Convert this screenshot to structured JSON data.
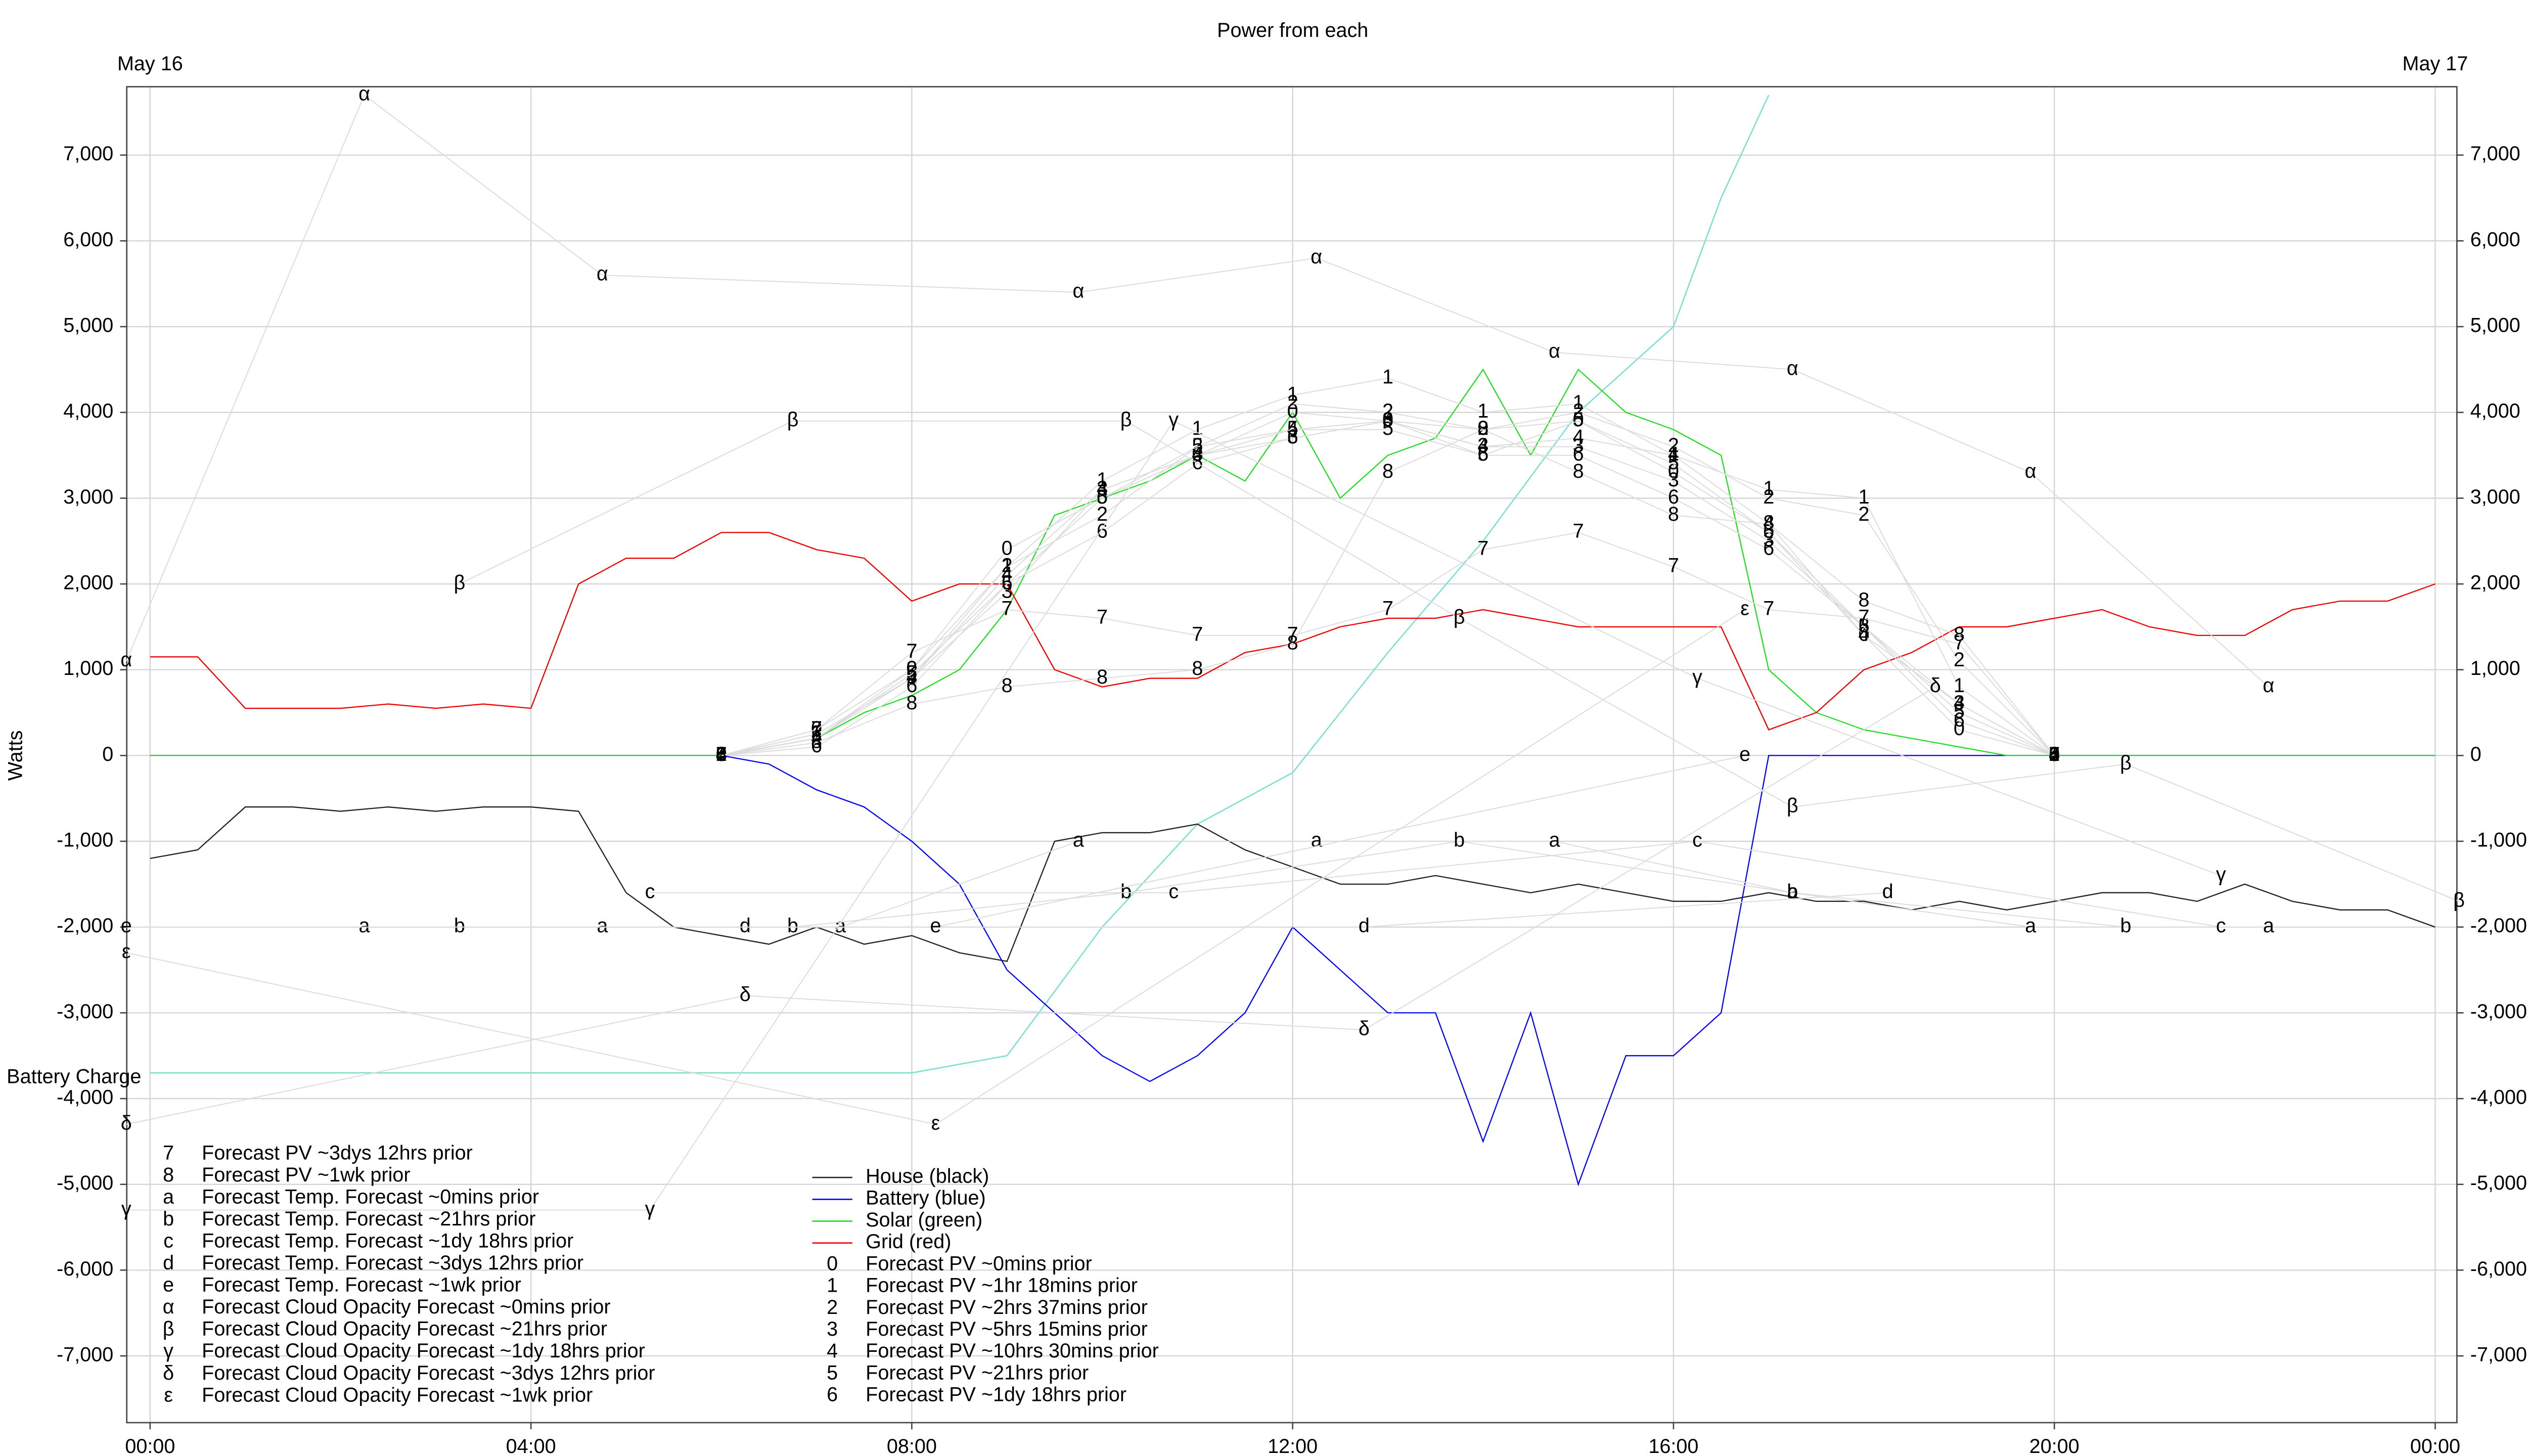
{
  "chart_data": {
    "type": "line",
    "title": "Power from each",
    "y_label": "Watts",
    "date_labels": [
      {
        "value": 0,
        "label": "May 16"
      },
      {
        "value": 24,
        "label": "May 17"
      }
    ],
    "xlim": [
      -0.245,
      24.228
    ],
    "ylim": [
      -7778,
      7797
    ],
    "xticks": [
      {
        "value": 0,
        "label": "00:00"
      },
      {
        "value": 4,
        "label": "04:00"
      },
      {
        "value": 8,
        "label": "08:00"
      },
      {
        "value": 12,
        "label": "12:00"
      },
      {
        "value": 16,
        "label": "16:00"
      },
      {
        "value": 20,
        "label": "20:00"
      },
      {
        "value": 24,
        "label": "00:00"
      }
    ],
    "yticks": [
      {
        "value": -7000,
        "label": "-7,000"
      },
      {
        "value": -6000,
        "label": "-6,000"
      },
      {
        "value": -5000,
        "label": "-5,000"
      },
      {
        "value": -4000,
        "label": "-4,000"
      },
      {
        "value": -3000,
        "label": "-3,000"
      },
      {
        "value": -2000,
        "label": "-2,000"
      },
      {
        "value": -1000,
        "label": "-1,000"
      },
      0,
      {
        "value": 1000,
        "label": "1,000"
      },
      {
        "value": 2000,
        "label": "2,000"
      },
      {
        "value": 3000,
        "label": "3,000"
      },
      {
        "value": 4000,
        "label": "4,000"
      },
      {
        "value": 5000,
        "label": "5,000"
      },
      {
        "value": 6000,
        "label": "6,000"
      },
      {
        "value": 7000,
        "label": "7,000"
      }
    ],
    "grid": true,
    "x": [
      0,
      0.5,
      1,
      1.5,
      2,
      2.5,
      3,
      3.5,
      4,
      4.5,
      5,
      5.5,
      6,
      6.5,
      7,
      7.5,
      8,
      8.5,
      9,
      9.5,
      10,
      10.5,
      11,
      11.5,
      12,
      12.5,
      13,
      13.5,
      14,
      14.5,
      15,
      15.5,
      16,
      16.5,
      17,
      17.5,
      18,
      18.5,
      19,
      19.5,
      20,
      20.5,
      21,
      21.5,
      22,
      22.5,
      23,
      23.5,
      24
    ],
    "battery_charge": {
      "name": "Battery Charge",
      "color": "#7fe0d0",
      "x": [
        0,
        8,
        9,
        10,
        11,
        12,
        13,
        14,
        15,
        16,
        16.5,
        17
      ],
      "values": [
        -3700,
        -3700,
        -3500,
        -2000,
        -800,
        -200,
        1200,
        2500,
        4000,
        5000,
        6500,
        7700
      ]
    },
    "series": [
      {
        "name": "House (black)",
        "color": "#222222",
        "values": [
          -1200,
          -1100,
          -600,
          -600,
          -650,
          -600,
          -650,
          -600,
          -600,
          -650,
          -1600,
          -2000,
          -2100,
          -2200,
          -2000,
          -2200,
          -2100,
          -2300,
          -2400,
          -1000,
          -900,
          -900,
          -800,
          -1100,
          -1300,
          -1500,
          -1500,
          -1400,
          -1500,
          -1600,
          -1500,
          -1600,
          -1700,
          -1700,
          -1600,
          -1700,
          -1700,
          -1800,
          -1700,
          -1800,
          -1700,
          -1600,
          -1600,
          -1700,
          -1500,
          -1700,
          -1800,
          -1800,
          -2000
        ]
      },
      {
        "name": "Battery (blue)",
        "color": "#0000ff",
        "values": [
          0,
          0,
          0,
          0,
          0,
          0,
          0,
          0,
          0,
          0,
          0,
          0,
          0,
          -100,
          -400,
          -600,
          -1000,
          -1500,
          -2500,
          -3000,
          -3500,
          -3800,
          -3500,
          -3000,
          -2000,
          -2500,
          -3000,
          -3000,
          -4500,
          -3000,
          -5000,
          -3500,
          -3500,
          -3000,
          0,
          0,
          0,
          0,
          0,
          0,
          0,
          0,
          0,
          0,
          0,
          0,
          0,
          0,
          0
        ]
      },
      {
        "name": "Solar (green)",
        "color": "#22dd22",
        "values": [
          0,
          0,
          0,
          0,
          0,
          0,
          0,
          0,
          0,
          0,
          0,
          0,
          0,
          100,
          200,
          500,
          700,
          1000,
          1700,
          2800,
          3000,
          3200,
          3500,
          3200,
          4000,
          3000,
          3500,
          3700,
          4500,
          3500,
          4500,
          4000,
          3800,
          3500,
          1000,
          500,
          300,
          200,
          100,
          0,
          0,
          0,
          0,
          0,
          0,
          0,
          0,
          0,
          0
        ]
      },
      {
        "name": "Grid (red)",
        "color": "#ee0000",
        "values": [
          1150,
          1150,
          550,
          550,
          550,
          600,
          550,
          600,
          550,
          2000,
          2300,
          2300,
          2600,
          2600,
          2400,
          2300,
          1800,
          2000,
          2000,
          1000,
          800,
          900,
          900,
          1200,
          1300,
          1500,
          1600,
          1600,
          1700,
          1600,
          1500,
          1500,
          1500,
          1500,
          300,
          500,
          1000,
          1200,
          1500,
          1500,
          1600,
          1700,
          1500,
          1400,
          1400,
          1700,
          1800,
          1800,
          2000
        ]
      },
      {
        "name": "Forecast PV ~0mins prior",
        "marker": "0",
        "x": [
          6,
          7,
          8,
          9,
          10,
          11,
          12,
          13,
          14,
          15,
          16,
          17,
          18,
          19,
          20
        ],
        "values": [
          0,
          300,
          1000,
          2400,
          3000,
          3500,
          4000,
          3900,
          3800,
          3900,
          3300,
          2600,
          1400,
          300,
          0
        ]
      },
      {
        "name": "Forecast PV ~1hr 18mins prior",
        "marker": "1",
        "x": [
          6,
          7,
          8,
          9,
          10,
          11,
          12,
          13,
          14,
          15,
          16,
          17,
          18,
          19,
          20
        ],
        "values": [
          0,
          250,
          900,
          2200,
          3200,
          3800,
          4200,
          4400,
          4000,
          4100,
          3500,
          3100,
          3000,
          800,
          0
        ]
      },
      {
        "name": "Forecast PV ~2hrs 37mins prior",
        "marker": "2",
        "x": [
          6,
          7,
          8,
          9,
          10,
          11,
          12,
          13,
          14,
          15,
          16,
          17,
          18,
          19,
          20
        ],
        "values": [
          0,
          200,
          1000,
          2200,
          2800,
          3600,
          4100,
          4000,
          3800,
          4000,
          3600,
          3000,
          2800,
          1100,
          0
        ]
      },
      {
        "name": "Forecast PV ~5hrs 15mins prior",
        "marker": "3",
        "x": [
          6,
          7,
          8,
          9,
          10,
          11,
          12,
          13,
          14,
          15,
          16,
          17,
          18,
          19,
          20
        ],
        "values": [
          0,
          250,
          900,
          1900,
          3100,
          3500,
          3700,
          3900,
          3600,
          3600,
          3200,
          2500,
          1500,
          600,
          0
        ]
      },
      {
        "name": "Forecast PV ~10hrs 30mins prior",
        "marker": "4",
        "x": [
          6,
          7,
          8,
          9,
          10,
          11,
          12,
          13,
          14,
          15,
          16,
          17,
          18,
          19,
          20
        ],
        "values": [
          0,
          200,
          900,
          2100,
          3100,
          3500,
          3800,
          3900,
          3600,
          3700,
          3500,
          2700,
          1400,
          600,
          0
        ]
      },
      {
        "name": "Forecast PV ~21hrs prior",
        "marker": "5",
        "x": [
          6,
          7,
          8,
          9,
          10,
          11,
          12,
          13,
          14,
          15,
          16,
          17,
          18,
          19,
          20
        ],
        "values": [
          0,
          200,
          950,
          2000,
          3000,
          3600,
          3800,
          3800,
          3500,
          3900,
          3400,
          2600,
          1500,
          500,
          0
        ]
      },
      {
        "name": "Forecast PV ~1dy 18hrs prior",
        "marker": "6",
        "x": [
          6,
          7,
          8,
          9,
          10,
          11,
          12,
          13,
          14,
          15,
          16,
          17,
          18,
          19,
          20
        ],
        "values": [
          0,
          100,
          800,
          2000,
          2600,
          3400,
          3700,
          3900,
          3500,
          3500,
          3000,
          2400,
          1500,
          400,
          0
        ]
      },
      {
        "name": "Forecast PV ~3dys 12hrs prior",
        "marker": "7",
        "x": [
          6,
          7,
          8,
          9,
          10,
          11,
          12,
          13,
          14,
          15,
          16,
          17,
          18,
          19,
          20
        ],
        "values": [
          0,
          300,
          1200,
          1700,
          1600,
          1400,
          1400,
          1700,
          2400,
          2600,
          2200,
          1700,
          1600,
          1300,
          0
        ]
      },
      {
        "name": "Forecast PV ~1wk prior",
        "marker": "8",
        "x": [
          6,
          7,
          8,
          9,
          10,
          11,
          12,
          13,
          14,
          15,
          16,
          17,
          18,
          19,
          20
        ],
        "values": [
          0,
          150,
          600,
          800,
          900,
          1000,
          1300,
          3300,
          3800,
          3300,
          2800,
          2700,
          1800,
          1400,
          0
        ]
      },
      {
        "name": "Forecast Temp. Forecast ~0mins prior",
        "marker": "a",
        "x": [
          2.25,
          4.75,
          7.25,
          9.75,
          12.25,
          14.75,
          17.25,
          19.75,
          22.25
        ],
        "values": [
          -2000,
          -2000,
          -2000,
          -1000,
          -1000,
          -1000,
          -1600,
          -2000,
          -2000
        ]
      },
      {
        "name": "Forecast Temp. Forecast ~21hrs prior",
        "marker": "b",
        "x": [
          3.25,
          6.75,
          10.25,
          13.75,
          17.25,
          20.75
        ],
        "values": [
          -2000,
          -2000,
          -1600,
          -1000,
          -1600,
          -2000
        ]
      },
      {
        "name": "Forecast Temp. Forecast ~1dy 18hrs prior",
        "marker": "c",
        "x": [
          5.25,
          10.75,
          16.25,
          21.75
        ],
        "values": [
          -1600,
          -1600,
          -1000,
          -2000
        ]
      },
      {
        "name": "Forecast Temp. Forecast ~3dys 12hrs prior",
        "marker": "d",
        "x": [
          6.25,
          12.75,
          18.25
        ],
        "values": [
          -2000,
          -2000,
          -1600
        ]
      },
      {
        "name": "Forecast Temp. Forecast ~1wk prior",
        "marker": "e",
        "x": [
          -0.25,
          8.25,
          16.75
        ],
        "values": [
          -2000,
          -2000,
          0
        ]
      },
      {
        "name": "Forecast Cloud Opacity Forecast ~0mins prior",
        "marker": "α",
        "x": [
          -0.25,
          2.25,
          4.75,
          9.75,
          12.25,
          14.75,
          17.25,
          19.75,
          22.25
        ],
        "values": [
          1100,
          7700,
          5600,
          5400,
          5800,
          4700,
          4500,
          3300,
          800
        ]
      },
      {
        "name": "Forecast Cloud Opacity Forecast ~21hrs prior",
        "marker": "β",
        "x": [
          3.25,
          6.75,
          10.25,
          13.75,
          17.25,
          20.75,
          24.25
        ],
        "values": [
          2000,
          3900,
          3900,
          1600,
          -600,
          -100,
          -1700
        ]
      },
      {
        "name": "Forecast Cloud Opacity Forecast ~1dy 18hrs prior",
        "marker": "γ",
        "x": [
          -0.25,
          5.25,
          10.75,
          16.25,
          21.75
        ],
        "values": [
          -5300,
          -5300,
          3900,
          900,
          -1400
        ]
      },
      {
        "name": "Forecast Cloud Opacity Forecast ~3dys 12hrs prior",
        "marker": "δ",
        "x": [
          -0.25,
          6.25,
          12.75,
          18.75
        ],
        "values": [
          -4300,
          -2800,
          -3200,
          800
        ]
      },
      {
        "name": "Forecast Cloud Opacity Forecast ~1wk prior",
        "marker": "ε",
        "x": [
          -0.25,
          8.25,
          16.75
        ],
        "values": [
          -2300,
          -4300,
          1700
        ]
      }
    ]
  }
}
